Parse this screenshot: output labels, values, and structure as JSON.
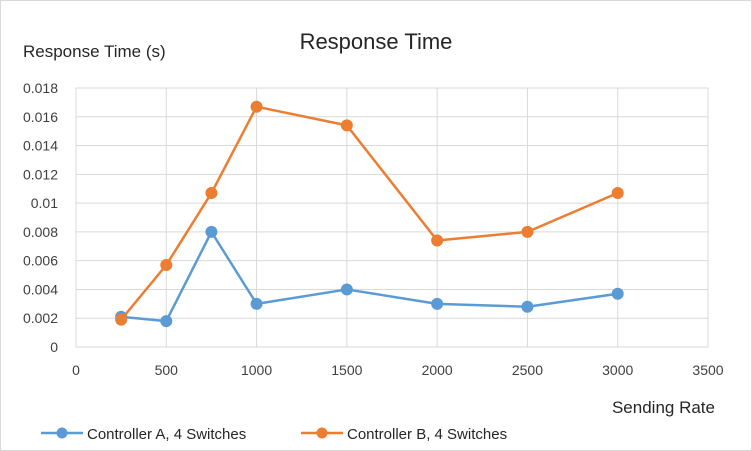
{
  "chart_data": {
    "type": "line",
    "title": "Response Time",
    "ylabel": "Response Time (s)",
    "xlabel": "Sending Rate",
    "xlim": [
      0,
      3500
    ],
    "ylim": [
      0,
      0.018
    ],
    "x_ticks": [
      "0",
      "500",
      "1000",
      "1500",
      "2000",
      "2500",
      "3000",
      "3500"
    ],
    "y_ticks": [
      "0",
      "0.002",
      "0.004",
      "0.006",
      "0.008",
      "0.01",
      "0.012",
      "0.014",
      "0.016",
      "0.018"
    ],
    "grid": true,
    "legend_position": "bottom",
    "series": [
      {
        "name": "Controller A, 4 Switches",
        "color": "#5b9bd5",
        "x": [
          250,
          500,
          750,
          1000,
          1500,
          2000,
          2500,
          3000
        ],
        "y": [
          0.0021,
          0.0018,
          0.008,
          0.003,
          0.004,
          0.003,
          0.0028,
          0.0037
        ]
      },
      {
        "name": "Controller B, 4 Switches",
        "color": "#ed7d31",
        "x": [
          250,
          500,
          750,
          1000,
          1500,
          2000,
          2500,
          3000
        ],
        "y": [
          0.0019,
          0.0057,
          0.0107,
          0.0167,
          0.0154,
          0.0074,
          0.008,
          0.0107
        ]
      }
    ]
  }
}
